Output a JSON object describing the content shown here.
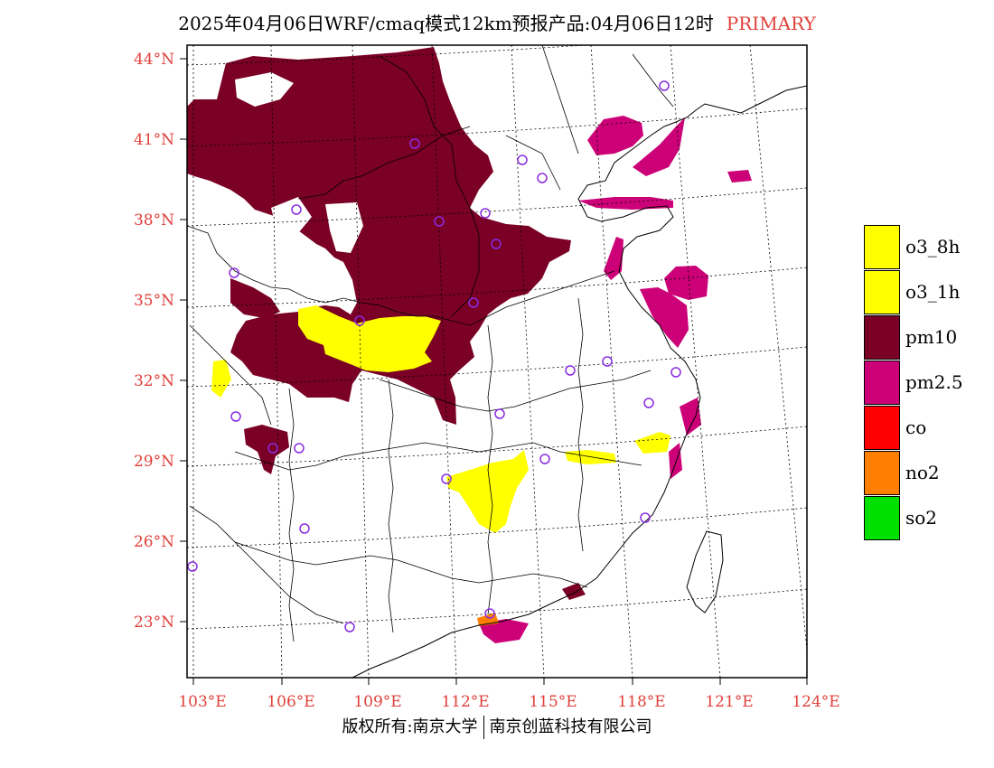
{
  "title": {
    "main": "2025年04月06日WRF/cmaq模式12km预报产品:04月06日12时",
    "tag": "PRIMARY",
    "tag_color": "#e0403a"
  },
  "map": {
    "latitude_labels": [
      "44°N",
      "41°N",
      "38°N",
      "35°N",
      "32°N",
      "29°N",
      "26°N",
      "23°N"
    ],
    "longitude_labels": [
      "103°E",
      "106°E",
      "109°E",
      "112°E",
      "115°E",
      "118°E",
      "121°E",
      "124°E"
    ],
    "label_color": "#e0403a",
    "gridline_style": "dotted",
    "station_marker_color": "#8a2be2"
  },
  "legend": {
    "items": [
      {
        "label": "o3_8h",
        "color": "#ffff00"
      },
      {
        "label": "o3_1h",
        "color": "#ffff00"
      },
      {
        "label": "pm10",
        "color": "#7a0026"
      },
      {
        "label": "pm2.5",
        "color": "#cc0077"
      },
      {
        "label": "co",
        "color": "#ff0000"
      },
      {
        "label": "no2",
        "color": "#ff8000"
      },
      {
        "label": "so2",
        "color": "#00e000"
      }
    ]
  },
  "footer": {
    "left": "版权所有:南京大学",
    "right": "南京创蓝科技有限公司"
  }
}
